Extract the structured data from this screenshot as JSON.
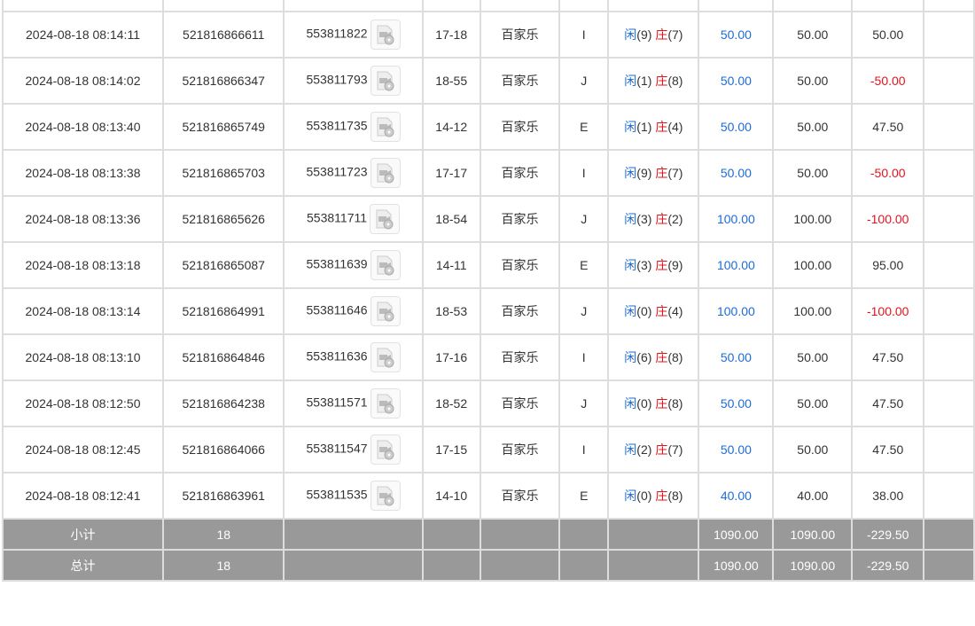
{
  "colors": {
    "player": "#1e6bd6",
    "banker": "#e0141e",
    "negative": "#e0141e",
    "summary_bg": "#999999"
  },
  "rows": [
    {
      "time": "",
      "bet_id": "",
      "round_id": "",
      "table": "",
      "game": "",
      "seat": "",
      "result": {
        "p": "",
        "b": ""
      },
      "bet": "",
      "valid": "",
      "win": "",
      "neg": false
    },
    {
      "time": "2024-08-18 08:14:11",
      "bet_id": "521816866611",
      "round_id": "553811822",
      "table": "17-18",
      "game": "百家乐",
      "seat": "I",
      "result": {
        "p": "(9)",
        "b": "(7)"
      },
      "bet": "50.00",
      "valid": "50.00",
      "win": "50.00",
      "neg": false
    },
    {
      "time": "2024-08-18 08:14:02",
      "bet_id": "521816866347",
      "round_id": "553811793",
      "table": "18-55",
      "game": "百家乐",
      "seat": "J",
      "result": {
        "p": "(1)",
        "b": "(8)"
      },
      "bet": "50.00",
      "valid": "50.00",
      "win": "-50.00",
      "neg": true
    },
    {
      "time": "2024-08-18 08:13:40",
      "bet_id": "521816865749",
      "round_id": "553811735",
      "table": "14-12",
      "game": "百家乐",
      "seat": "E",
      "result": {
        "p": "(1)",
        "b": "(4)"
      },
      "bet": "50.00",
      "valid": "50.00",
      "win": "47.50",
      "neg": false
    },
    {
      "time": "2024-08-18 08:13:38",
      "bet_id": "521816865703",
      "round_id": "553811723",
      "table": "17-17",
      "game": "百家乐",
      "seat": "I",
      "result": {
        "p": "(9)",
        "b": "(7)"
      },
      "bet": "50.00",
      "valid": "50.00",
      "win": "-50.00",
      "neg": true
    },
    {
      "time": "2024-08-18 08:13:36",
      "bet_id": "521816865626",
      "round_id": "553811711",
      "table": "18-54",
      "game": "百家乐",
      "seat": "J",
      "result": {
        "p": "(3)",
        "b": "(2)"
      },
      "bet": "100.00",
      "valid": "100.00",
      "win": "-100.00",
      "neg": true
    },
    {
      "time": "2024-08-18 08:13:18",
      "bet_id": "521816865087",
      "round_id": "553811639",
      "table": "14-11",
      "game": "百家乐",
      "seat": "E",
      "result": {
        "p": "(3)",
        "b": "(9)"
      },
      "bet": "100.00",
      "valid": "100.00",
      "win": "95.00",
      "neg": false
    },
    {
      "time": "2024-08-18 08:13:14",
      "bet_id": "521816864991",
      "round_id": "553811646",
      "table": "18-53",
      "game": "百家乐",
      "seat": "J",
      "result": {
        "p": "(0)",
        "b": "(4)"
      },
      "bet": "100.00",
      "valid": "100.00",
      "win": "-100.00",
      "neg": true
    },
    {
      "time": "2024-08-18 08:13:10",
      "bet_id": "521816864846",
      "round_id": "553811636",
      "table": "17-16",
      "game": "百家乐",
      "seat": "I",
      "result": {
        "p": "(6)",
        "b": "(8)"
      },
      "bet": "50.00",
      "valid": "50.00",
      "win": "47.50",
      "neg": false
    },
    {
      "time": "2024-08-18 08:12:50",
      "bet_id": "521816864238",
      "round_id": "553811571",
      "table": "18-52",
      "game": "百家乐",
      "seat": "J",
      "result": {
        "p": "(0)",
        "b": "(8)"
      },
      "bet": "50.00",
      "valid": "50.00",
      "win": "47.50",
      "neg": false
    },
    {
      "time": "2024-08-18 08:12:45",
      "bet_id": "521816864066",
      "round_id": "553811547",
      "table": "17-15",
      "game": "百家乐",
      "seat": "I",
      "result": {
        "p": "(2)",
        "b": "(7)"
      },
      "bet": "50.00",
      "valid": "50.00",
      "win": "47.50",
      "neg": false
    },
    {
      "time": "2024-08-18 08:12:41",
      "bet_id": "521816863961",
      "round_id": "553811535",
      "table": "14-10",
      "game": "百家乐",
      "seat": "E",
      "result": {
        "p": "(0)",
        "b": "(8)"
      },
      "bet": "40.00",
      "valid": "40.00",
      "win": "38.00",
      "neg": false
    }
  ],
  "labels": {
    "player": "闲",
    "banker": "庄"
  },
  "summary": [
    {
      "label": "小计",
      "count": "18",
      "bet": "1090.00",
      "valid": "1090.00",
      "win": "-229.50"
    },
    {
      "label": "总计",
      "count": "18",
      "bet": "1090.00",
      "valid": "1090.00",
      "win": "-229.50"
    }
  ],
  "icons": {
    "replay": "video-replay-icon"
  }
}
